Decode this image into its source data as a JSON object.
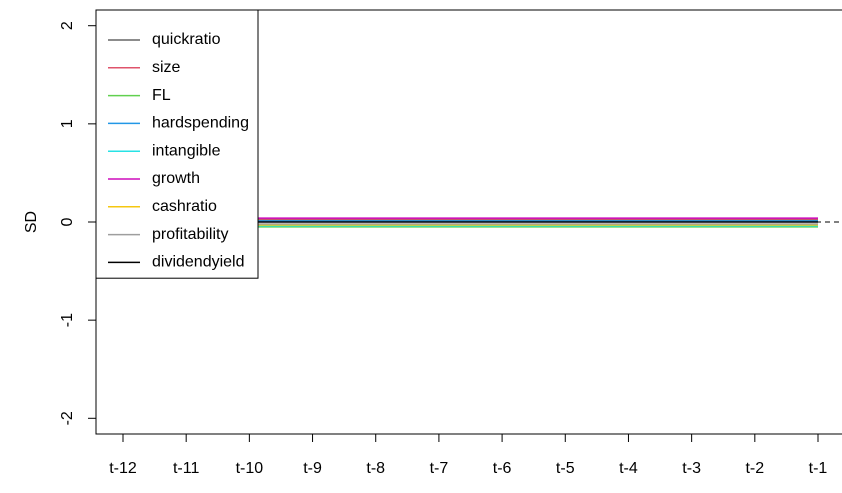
{
  "chart_data": {
    "type": "line",
    "y_label": "SD",
    "categories": [
      "t-12",
      "t-11",
      "t-10",
      "t-9",
      "t-8",
      "t-7",
      "t-6",
      "t-5",
      "t-4",
      "t-3",
      "t-2",
      "t-1"
    ],
    "series": [
      {
        "name": "quickratio",
        "color": "#666666",
        "values": [
          null,
          null,
          0.02,
          0.02,
          0.02,
          0.02,
          0.02,
          0.02,
          0.02,
          0.02,
          0.02,
          0.02
        ]
      },
      {
        "name": "size",
        "color": "#DF536B",
        "values": [
          null,
          null,
          0.03,
          0.03,
          0.03,
          0.03,
          0.03,
          0.03,
          0.03,
          0.03,
          0.03,
          0.03
        ]
      },
      {
        "name": "FL",
        "color": "#61D04F",
        "values": [
          null,
          null,
          -0.05,
          -0.05,
          -0.05,
          -0.05,
          -0.05,
          -0.05,
          -0.05,
          -0.05,
          -0.05,
          -0.05
        ]
      },
      {
        "name": "hardspending",
        "color": "#2297E6",
        "values": [
          null,
          null,
          0.01,
          0.01,
          0.01,
          0.01,
          0.01,
          0.01,
          0.01,
          0.01,
          0.01,
          0.01
        ]
      },
      {
        "name": "intangible",
        "color": "#28E2E5",
        "values": [
          null,
          null,
          -0.04,
          -0.04,
          -0.04,
          -0.04,
          -0.04,
          -0.04,
          -0.04,
          -0.04,
          -0.04,
          -0.04
        ]
      },
      {
        "name": "growth",
        "color": "#CD0BBC",
        "values": [
          null,
          null,
          0.04,
          0.04,
          0.04,
          0.04,
          0.04,
          0.04,
          0.04,
          0.04,
          0.04,
          0.04
        ]
      },
      {
        "name": "cashratio",
        "color": "#F5C710",
        "values": [
          null,
          null,
          -0.03,
          -0.03,
          -0.03,
          -0.03,
          -0.03,
          -0.03,
          -0.03,
          -0.03,
          -0.03,
          -0.03
        ]
      },
      {
        "name": "profitability",
        "color": "#9E9E9E",
        "values": [
          null,
          null,
          -0.02,
          -0.02,
          -0.02,
          -0.02,
          -0.02,
          -0.02,
          -0.02,
          -0.02,
          -0.02,
          -0.02
        ]
      },
      {
        "name": "dividendyield",
        "color": "#000000",
        "values": [
          null,
          null,
          0,
          0,
          0,
          0,
          0,
          0,
          0,
          0,
          0,
          0
        ]
      }
    ],
    "ylim": [
      -2.16,
      2.16
    ],
    "yticks": [
      -2,
      -1,
      0,
      1,
      2
    ],
    "reference_line": 0,
    "legend": "top-left",
    "grid": false
  }
}
